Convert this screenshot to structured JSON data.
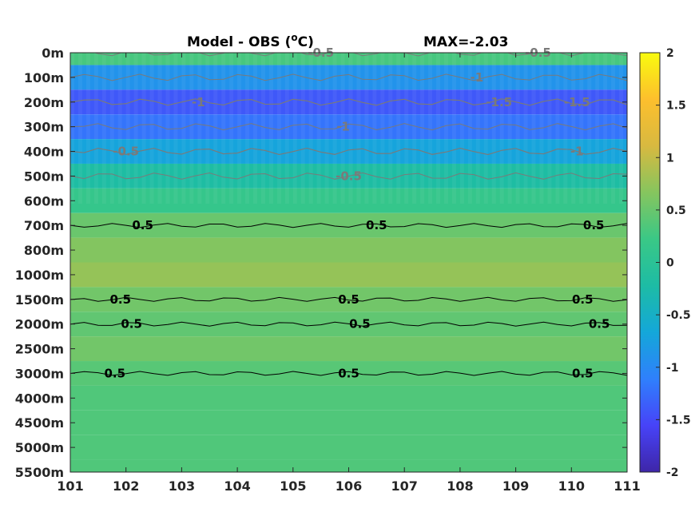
{
  "chart_data": {
    "type": "heatmap",
    "title": "Model - OBS (",
    "title_unit": "o",
    "title_suffix": "C)",
    "max_label": "MAX=-2.03",
    "x_ticks": [
      "101",
      "102",
      "103",
      "104",
      "105",
      "106",
      "107",
      "108",
      "109",
      "110",
      "111"
    ],
    "xlim": [
      101,
      111
    ],
    "y_ticks": [
      "0m",
      "100m",
      "200m",
      "300m",
      "400m",
      "500m",
      "600m",
      "700m",
      "800m",
      "1000m",
      "1500m",
      "2000m",
      "2500m",
      "3000m",
      "4000m",
      "4500m",
      "5000m",
      "5500m"
    ],
    "y_reversed": true,
    "colorbar_ticks": [
      "2",
      "1.5",
      "1",
      "0.5",
      "0",
      "-0.5",
      "-1",
      "-1.5",
      "-2"
    ],
    "clim": [
      -2,
      2
    ],
    "colormap": [
      "#3e26a8",
      "#4743f8",
      "#2f80fc",
      "#14a7d9",
      "#1dbca5",
      "#3ac886",
      "#86c55e",
      "#d8b940",
      "#fdbf2d",
      "#f9fb0e"
    ],
    "depth_profile_values": [
      0.3,
      -0.9,
      -1.4,
      -1.2,
      -0.7,
      -0.2,
      0.15,
      0.5,
      0.65,
      0.75,
      0.55,
      0.45,
      0.55,
      0.4,
      0.35,
      0.35,
      0.35,
      0.35
    ],
    "contour_labels": [
      {
        "text": "-0.5",
        "level": "-0.5",
        "x": 102.0,
        "depth": "400m"
      },
      {
        "text": "-1",
        "level": "-1",
        "x": 103.3,
        "depth": "200m"
      },
      {
        "text": "-0.5",
        "level": "-0.5",
        "x": 105.5,
        "depth": "0m"
      },
      {
        "text": "-1",
        "level": "-1",
        "x": 105.9,
        "depth": "300m"
      },
      {
        "text": "-0.5",
        "level": "-0.5",
        "x": 106.0,
        "depth": "500m"
      },
      {
        "text": "-1",
        "level": "-1",
        "x": 108.3,
        "depth": "100m"
      },
      {
        "text": "-1.5",
        "level": "-1.5",
        "x": 108.7,
        "depth": "200m"
      },
      {
        "text": "-0.5",
        "level": "-0.5",
        "x": 109.4,
        "depth": "0m"
      },
      {
        "text": "-1.5",
        "level": "-1.5",
        "x": 110.1,
        "depth": "200m"
      },
      {
        "text": "-1",
        "level": "-1",
        "x": 110.1,
        "depth": "400m"
      },
      {
        "text": "0.5",
        "level": "0.5",
        "x": 102.3,
        "depth": "700m"
      },
      {
        "text": "0.5",
        "level": "0.5",
        "x": 106.5,
        "depth": "700m"
      },
      {
        "text": "0.5",
        "level": "0.5",
        "x": 110.4,
        "depth": "700m"
      },
      {
        "text": "0.5",
        "level": "0.5",
        "x": 101.9,
        "depth": "1500m"
      },
      {
        "text": "0.5",
        "level": "0.5",
        "x": 106.0,
        "depth": "1500m"
      },
      {
        "text": "0.5",
        "level": "0.5",
        "x": 110.2,
        "depth": "1500m"
      },
      {
        "text": "0.5",
        "level": "0.5",
        "x": 102.1,
        "depth": "2000m"
      },
      {
        "text": "0.5",
        "level": "0.5",
        "x": 106.2,
        "depth": "2000m"
      },
      {
        "text": "0.5",
        "level": "0.5",
        "x": 110.5,
        "depth": "2000m"
      },
      {
        "text": "0.5",
        "level": "0.5",
        "x": 101.8,
        "depth": "3000m"
      },
      {
        "text": "0.5",
        "level": "0.5",
        "x": 106.0,
        "depth": "3000m"
      },
      {
        "text": "0.5",
        "level": "0.5",
        "x": 110.2,
        "depth": "3000m"
      }
    ],
    "grid": false
  }
}
